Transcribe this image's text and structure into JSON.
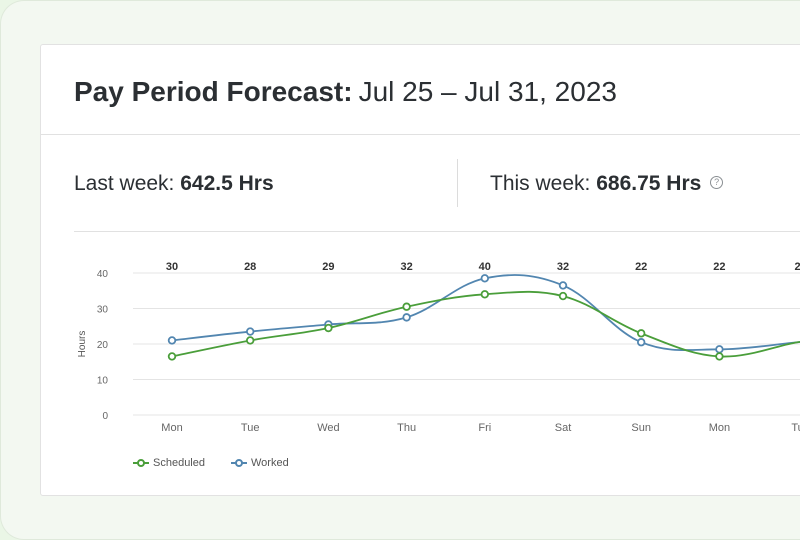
{
  "header": {
    "title_bold": "Pay Period Forecast:",
    "title_range": "Jul 25 – Jul 31, 2023"
  },
  "stats": {
    "last_week_label": "Last week:",
    "last_week_value": "642.5 Hrs",
    "this_week_label": "This week:",
    "this_week_value": "686.75 Hrs",
    "help_icon": "help-circle-icon"
  },
  "colors": {
    "scheduled": "#4a9e3a",
    "worked": "#5286b0"
  },
  "chart_data": {
    "type": "line",
    "ylabel": "Hours",
    "xlabel": "",
    "ylim": [
      0,
      40
    ],
    "yticks": [
      "0",
      "10",
      "20",
      "30",
      "40"
    ],
    "categories": [
      "Mon",
      "Tue",
      "Wed",
      "Thu",
      "Fri",
      "Sat",
      "Sun",
      "Mon",
      "Tu"
    ],
    "top_labels": [
      "30",
      "28",
      "29",
      "32",
      "40",
      "32",
      "22",
      "22",
      "2"
    ],
    "series": [
      {
        "name": "Scheduled",
        "values": [
          16.5,
          21,
          24.5,
          30.5,
          34,
          33.5,
          23,
          16.5,
          20.5
        ]
      },
      {
        "name": "Worked",
        "values": [
          21,
          23.5,
          25.5,
          27.5,
          38.5,
          36.5,
          20.5,
          18.5,
          20.5
        ]
      }
    ],
    "legend": [
      "Scheduled",
      "Worked"
    ],
    "grid": true
  }
}
